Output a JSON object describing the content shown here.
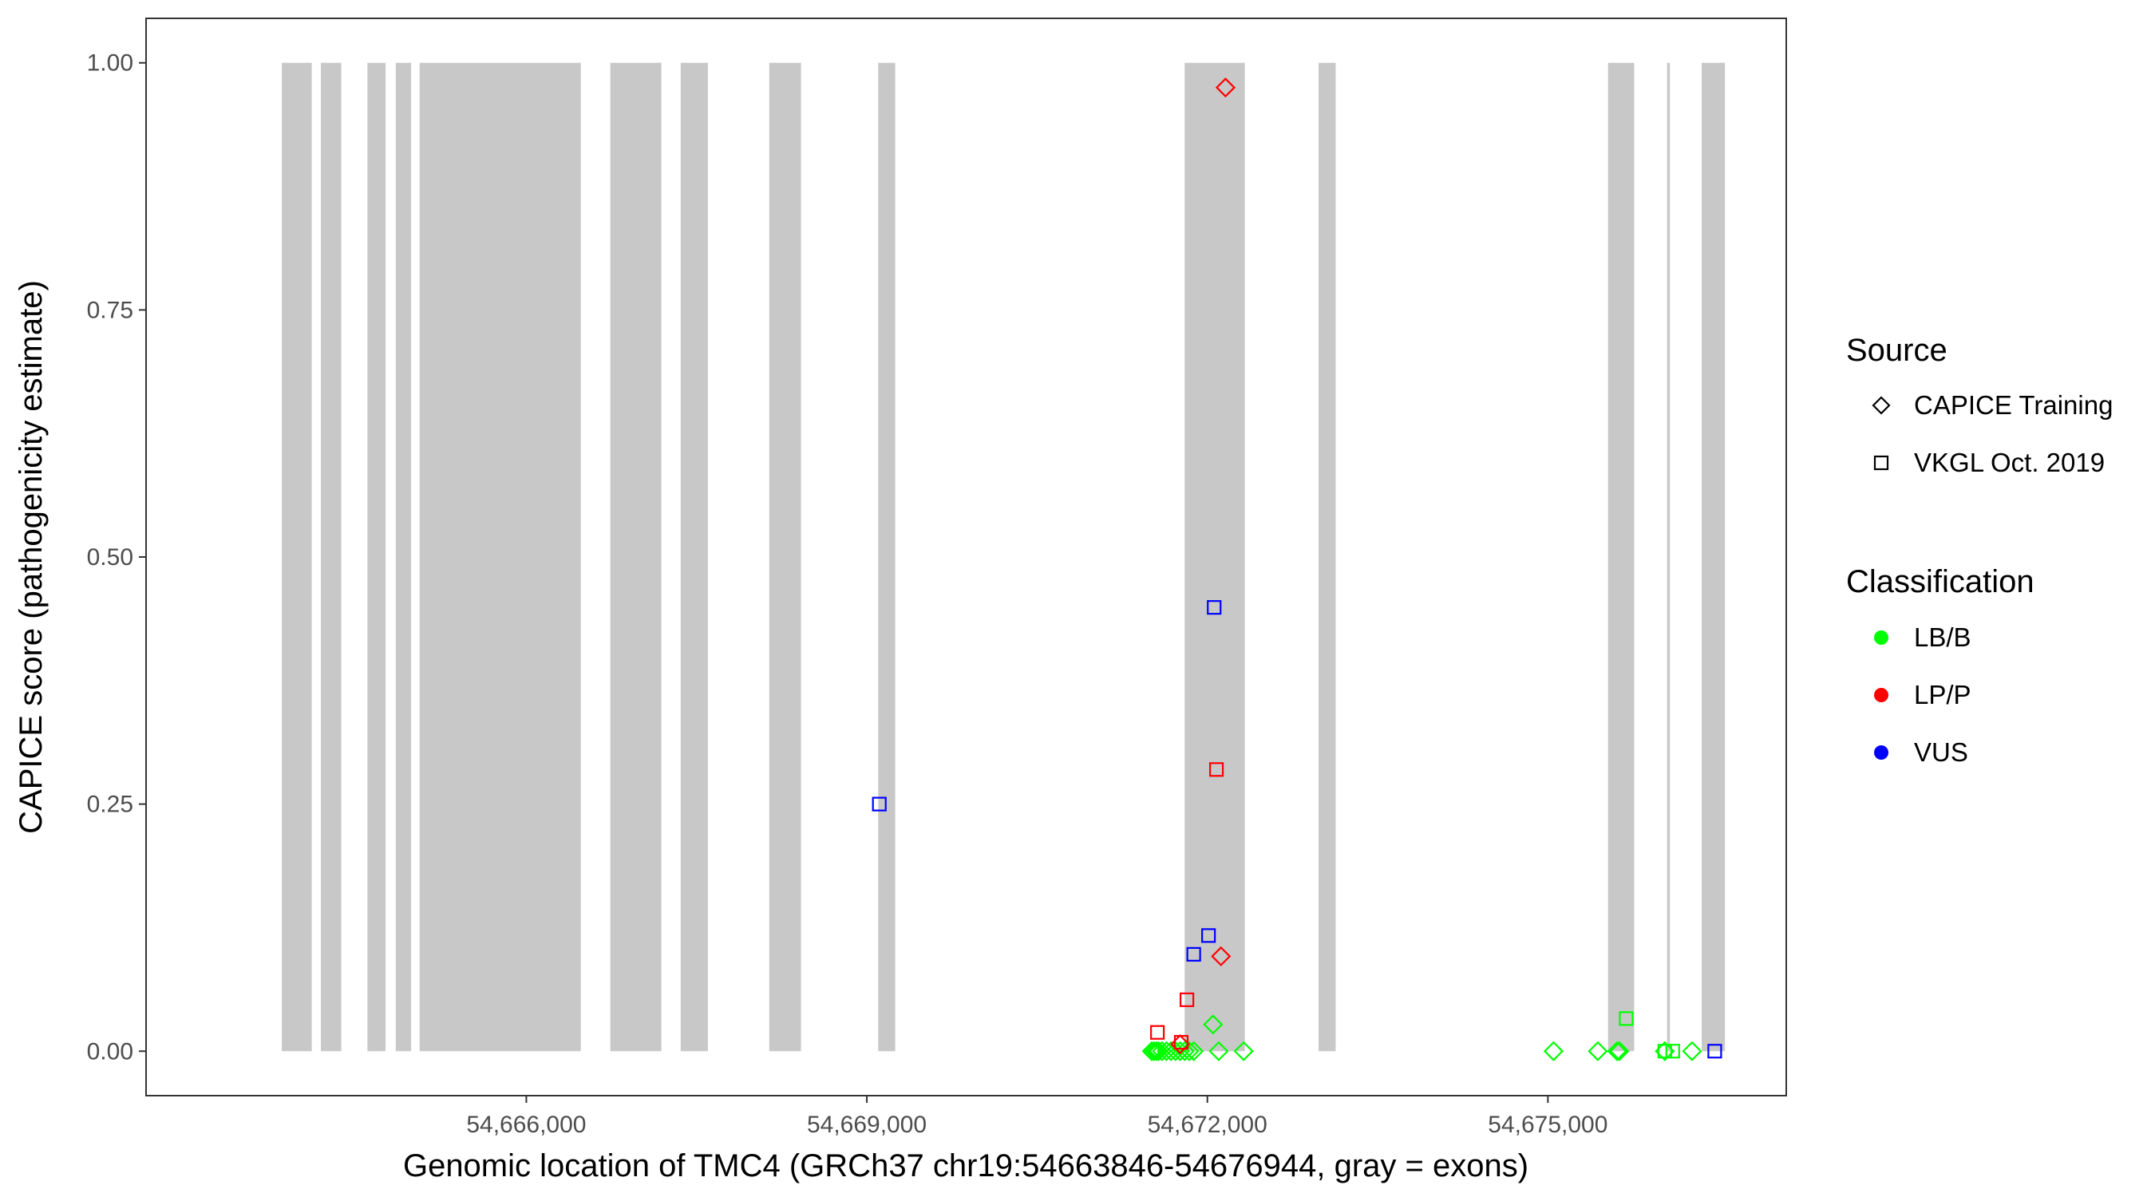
{
  "chart_data": {
    "type": "scatter",
    "title": "",
    "xlabel": "Genomic location of TMC4 (GRCh37 chr19:54663846-54676944, gray = exons)",
    "ylabel": "CAPICE score (pathogenicity estimate)",
    "xlim": [
      54662650,
      54677100
    ],
    "ylim": [
      -0.045,
      1.045
    ],
    "x_ticks": [
      54666000,
      54669000,
      54672000,
      54675000
    ],
    "x_tick_labels": [
      "54,666,000",
      "54,669,000",
      "54,672,000",
      "54,675,000"
    ],
    "y_ticks": [
      0,
      0.25,
      0.5,
      0.75,
      1.0
    ],
    "y_tick_labels": [
      "0.00",
      "0.25",
      "0.50",
      "0.75",
      "1.00"
    ],
    "grid": false,
    "exons": [
      [
        54663846,
        54664110
      ],
      [
        54664190,
        54664370
      ],
      [
        54664600,
        54664760
      ],
      [
        54664850,
        54664985
      ],
      [
        54665060,
        54666480
      ],
      [
        54666740,
        54667190
      ],
      [
        54667360,
        54667600
      ],
      [
        54668140,
        54668420
      ],
      [
        54669100,
        54669250
      ],
      [
        54671800,
        54672330
      ],
      [
        54672980,
        54673130
      ],
      [
        54675530,
        54675760
      ],
      [
        54676050,
        54676075
      ],
      [
        54676355,
        54676560
      ]
    ],
    "colors": {
      "LB/B": "#00ff00",
      "LP/P": "#ff0000",
      "VUS": "#0000ff",
      "exon": "#c8c8c8"
    },
    "series": [
      {
        "source": "CAPICE Training",
        "classification": "LB/B",
        "points": [
          [
            54671510,
            0.0
          ],
          [
            54671530,
            0.0
          ],
          [
            54671550,
            0.0
          ],
          [
            54671570,
            0.0
          ],
          [
            54671600,
            0.0
          ],
          [
            54671640,
            0.0
          ],
          [
            54671680,
            0.0
          ],
          [
            54671720,
            0.0
          ],
          [
            54671760,
            0.0
          ],
          [
            54671800,
            0.0
          ],
          [
            54671840,
            0.0
          ],
          [
            54671880,
            0.0
          ],
          [
            54672050,
            0.027
          ],
          [
            54672100,
            0.0
          ],
          [
            54672320,
            0.0
          ],
          [
            54675050,
            0.0
          ],
          [
            54675440,
            0.0
          ],
          [
            54675610,
            0.0
          ],
          [
            54675630,
            0.0
          ],
          [
            54676030,
            0.0
          ],
          [
            54676270,
            0.0
          ]
        ]
      },
      {
        "source": "CAPICE Training",
        "classification": "LP/P",
        "points": [
          [
            54671760,
            0.007
          ],
          [
            54672120,
            0.096
          ],
          [
            54672160,
            0.975
          ]
        ]
      },
      {
        "source": "VKGL Oct. 2019",
        "classification": "LB/B",
        "points": [
          [
            54675690,
            0.033
          ],
          [
            54676030,
            0.0
          ],
          [
            54676100,
            0.0
          ]
        ]
      },
      {
        "source": "VKGL Oct. 2019",
        "classification": "LP/P",
        "points": [
          [
            54671560,
            0.019
          ],
          [
            54671770,
            0.009
          ],
          [
            54671820,
            0.052
          ],
          [
            54672080,
            0.285
          ]
        ]
      },
      {
        "source": "VKGL Oct. 2019",
        "classification": "VUS",
        "points": [
          [
            54669110,
            0.25
          ],
          [
            54671880,
            0.098
          ],
          [
            54672010,
            0.117
          ],
          [
            54672060,
            0.449
          ],
          [
            54676470,
            0.0
          ]
        ]
      }
    ],
    "legend": {
      "position": "right",
      "source_title": "Source",
      "source_items": [
        {
          "label": "CAPICE Training",
          "shape": "diamond"
        },
        {
          "label": "VKGL Oct. 2019",
          "shape": "square"
        }
      ],
      "classification_title": "Classification",
      "classification_items": [
        {
          "label": "LB/B",
          "color": "#00ff00"
        },
        {
          "label": "LP/P",
          "color": "#ff0000"
        },
        {
          "label": "VUS",
          "color": "#0000ff"
        }
      ]
    }
  }
}
